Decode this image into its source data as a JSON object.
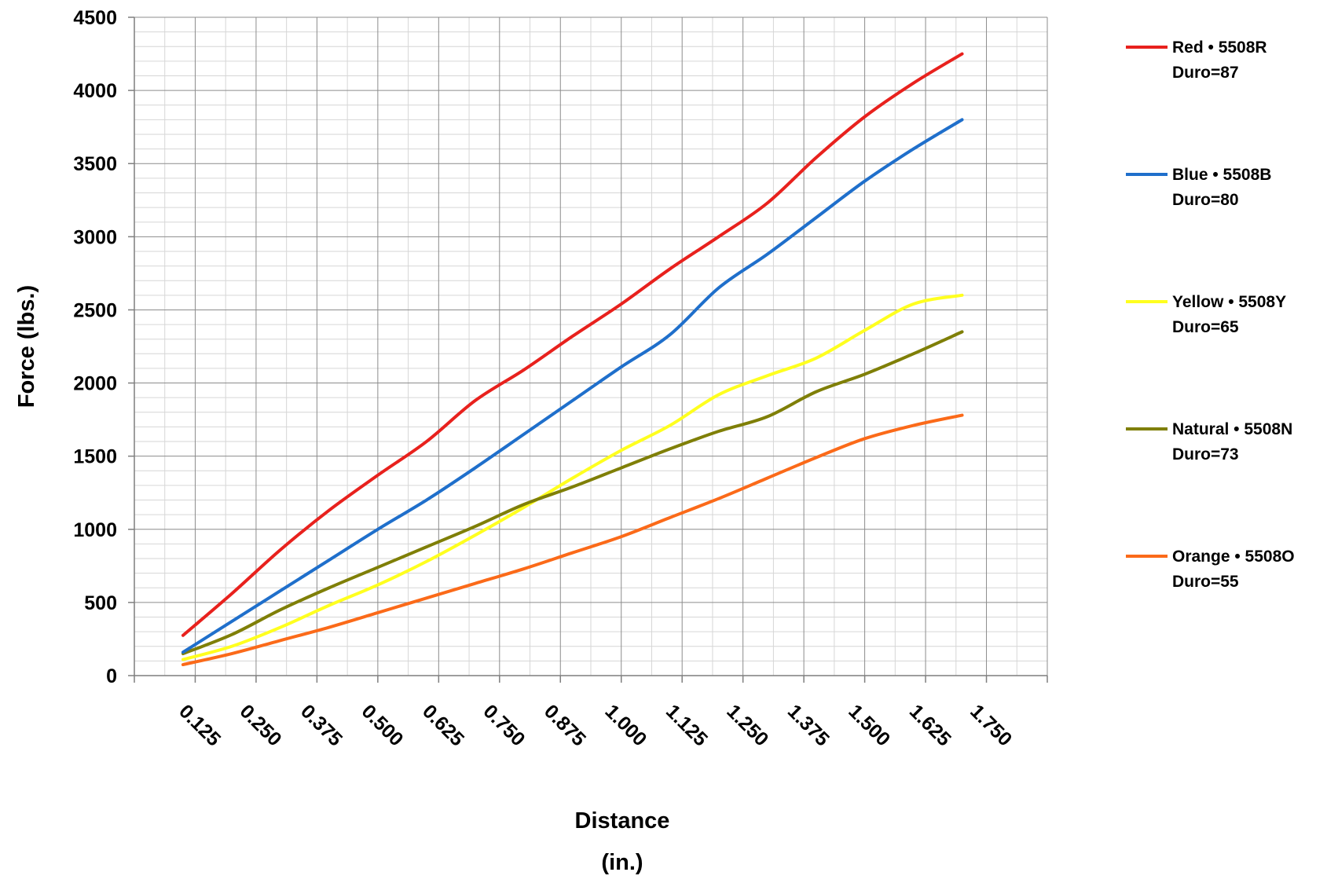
{
  "chart_data": {
    "type": "line",
    "xlabel": [
      "Distance",
      "(in.)"
    ],
    "ylabel": "Force (lbs.)",
    "ylim": [
      0,
      4500
    ],
    "yticks": [
      0,
      500,
      1000,
      1500,
      2000,
      2500,
      3000,
      3500,
      4000,
      4500
    ],
    "xlim": [
      0,
      1.875
    ],
    "categories": [
      "0.125",
      "0.250",
      "0.375",
      "0.500",
      "0.625",
      "0.750",
      "0.875",
      "1.000",
      "1.125",
      "1.250",
      "1.375",
      "1.500",
      "1.625",
      "1.750"
    ],
    "grid": true,
    "legend_position": "right",
    "x": [
      0.1,
      0.2,
      0.3,
      0.4,
      0.5,
      0.6,
      0.7,
      0.8,
      0.9,
      1.0,
      1.1,
      1.2,
      1.3,
      1.4,
      1.5,
      1.6,
      1.7
    ],
    "series": [
      {
        "name": [
          "Red • 5508R",
          "Duro=87"
        ],
        "color": "#e8211d",
        "values": [
          275,
          560,
          860,
          1130,
          1370,
          1600,
          1880,
          2090,
          2320,
          2540,
          2780,
          3000,
          3230,
          3540,
          3820,
          4050,
          4250
        ]
      },
      {
        "name": [
          "Blue • 5508B",
          "Duro=80"
        ],
        "color": "#1f6fcb",
        "values": [
          160,
          370,
          580,
          790,
          1000,
          1200,
          1420,
          1650,
          1880,
          2110,
          2330,
          2650,
          2880,
          3130,
          3380,
          3600,
          3800
        ]
      },
      {
        "name": [
          "Yellow • 5508Y",
          "Duro=65"
        ],
        "color": "#ffff1f",
        "values": [
          110,
          200,
          330,
          480,
          620,
          780,
          960,
          1150,
          1350,
          1540,
          1710,
          1920,
          2050,
          2170,
          2360,
          2540,
          2600
        ]
      },
      {
        "name": [
          "Natural • 5508N",
          "Duro=73"
        ],
        "color": "#7f7f07",
        "values": [
          150,
          280,
          450,
          600,
          740,
          880,
          1020,
          1170,
          1290,
          1420,
          1550,
          1670,
          1770,
          1940,
          2060,
          2200,
          2350
        ]
      },
      {
        "name": [
          "Orange • 5508O",
          "Duro=55"
        ],
        "color": "#fb6a19",
        "values": [
          75,
          150,
          240,
          330,
          430,
          530,
          630,
          730,
          840,
          950,
          1080,
          1210,
          1350,
          1490,
          1620,
          1710,
          1780
        ]
      }
    ]
  }
}
